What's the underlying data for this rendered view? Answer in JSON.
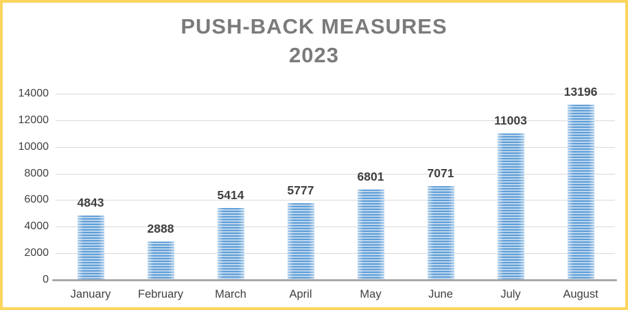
{
  "title": {
    "line1": "PUSH-BACK MEASURES",
    "line2": "2023",
    "color": "#7B7B7B"
  },
  "chart_data": {
    "type": "bar",
    "title": "PUSH-BACK MEASURES 2023",
    "categories": [
      "January",
      "February",
      "March",
      "April",
      "May",
      "June",
      "July",
      "August"
    ],
    "values": [
      4843,
      2888,
      5414,
      5777,
      6801,
      7071,
      11003,
      13196
    ],
    "xlabel": "",
    "ylabel": "",
    "ylim": [
      0,
      14000
    ],
    "ytick_step": 2000,
    "grid": true,
    "legend": "none",
    "bar_color": "#5B9BD5",
    "bar_stripe_light": "#EDF4FB",
    "gridline_color": "#D9D9D9",
    "axis_color": "#A8A8A8",
    "tick_label_color": "#404040",
    "value_label_color": "#3F3F3F",
    "frame_border_color": "#FBD55E"
  }
}
